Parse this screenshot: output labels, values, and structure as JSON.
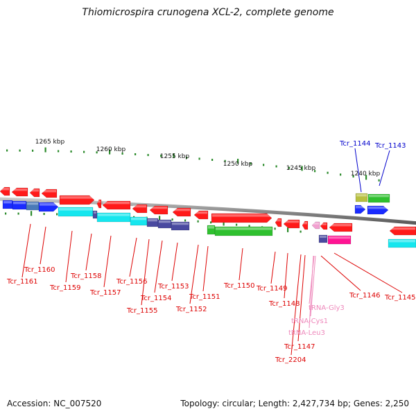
{
  "title": "Thiomicrospira crunogena XCL-2, complete genome",
  "footer": {
    "accession": "Accession: NC_007520",
    "summary": "Topology: circular; Length: 2,427,734 bp; Genes: 2,250"
  },
  "colors": {
    "background": "#ffffff",
    "backbone": "#8c8c8c",
    "ticks": "#2a8a2a",
    "tick_label": "#111111",
    "red_gene": "#ff1a1a",
    "blue_gene": "#1a2bff",
    "cyan_gene": "#16e6ee",
    "green_gene": "#2fc02f",
    "slate_gene": "#4a4aa0",
    "magenta_gene": "#ff1493",
    "pink_rna": "#f2a0d0",
    "label_red": "#dd0000",
    "label_blue": "#0000cc",
    "label_pink": "#ee88bb"
  },
  "tick_labels": [
    "1265 kbp",
    "1260 kbp",
    "1255 kbp",
    "1250 kbp",
    "1245 kbp",
    "1240 kbp"
  ],
  "gene_labels": [
    {
      "text": "Tcr_1161",
      "color": "red"
    },
    {
      "text": "Tcr_1160",
      "color": "red"
    },
    {
      "text": "Tcr_1159",
      "color": "red"
    },
    {
      "text": "Tcr_1158",
      "color": "red"
    },
    {
      "text": "Tcr_1157",
      "color": "red"
    },
    {
      "text": "Tcr_1156",
      "color": "red"
    },
    {
      "text": "Tcr_1155",
      "color": "red"
    },
    {
      "text": "Tcr_1154",
      "color": "red"
    },
    {
      "text": "Tcr_1153",
      "color": "red"
    },
    {
      "text": "Tcr_1152",
      "color": "red"
    },
    {
      "text": "Tcr_1151",
      "color": "red"
    },
    {
      "text": "Tcr_1150",
      "color": "red"
    },
    {
      "text": "Tcr_1149",
      "color": "red"
    },
    {
      "text": "Tcr_1148",
      "color": "red"
    },
    {
      "text": "Tcr_1147",
      "color": "red"
    },
    {
      "text": "Tcr_2204",
      "color": "red"
    },
    {
      "text": "tRNA-Gly3",
      "color": "pink"
    },
    {
      "text": "tRNA-Cys1",
      "color": "pink"
    },
    {
      "text": "tRNA-Leu3",
      "color": "pink"
    },
    {
      "text": "Tcr_1146",
      "color": "red"
    },
    {
      "text": "Tcr_1145",
      "color": "red"
    },
    {
      "text": "Tcr_1144",
      "color": "blue"
    },
    {
      "text": "Tcr_1143",
      "color": "blue"
    }
  ]
}
